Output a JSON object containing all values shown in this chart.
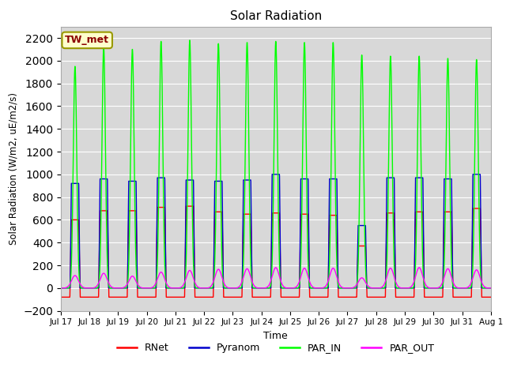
{
  "title": "Solar Radiation",
  "ylabel": "Solar Radiation (W/m2, uE/m2/s)",
  "xlabel": "Time",
  "ylim": [
    -200,
    2300
  ],
  "yticks": [
    -200,
    0,
    200,
    400,
    600,
    800,
    1000,
    1200,
    1400,
    1600,
    1800,
    2000,
    2200
  ],
  "background_color": "#d8d8d8",
  "legend_label": "TW_met",
  "legend_colors": {
    "RNet": "#ff0000",
    "Pyranom": "#0000cc",
    "PAR_IN": "#00ff00",
    "PAR_OUT": "#ff00ff"
  },
  "n_days": 15,
  "day_start": 17,
  "par_in_peaks": [
    1950,
    2120,
    2100,
    2170,
    2180,
    2150,
    2160,
    2170,
    2160,
    2160,
    2050,
    2040,
    2040,
    2020,
    2010
  ],
  "pyranom_peaks": [
    920,
    960,
    940,
    970,
    950,
    940,
    950,
    1000,
    960,
    960,
    550,
    970,
    970,
    960,
    1000
  ],
  "rnet_peaks": [
    600,
    680,
    680,
    710,
    720,
    670,
    650,
    660,
    650,
    640,
    370,
    660,
    670,
    670,
    700
  ],
  "par_out_peaks": [
    110,
    130,
    105,
    140,
    155,
    165,
    170,
    180,
    175,
    175,
    90,
    175,
    180,
    170,
    160
  ],
  "rnet_night": -80,
  "grid_color": "#ffffff",
  "line_width": 1.0,
  "day_labels": [
    "Jul 17",
    "Jul 18",
    "Jul 19",
    "Jul 20",
    "Jul 21",
    "Jul 22",
    "Jul 23",
    "Jul 24",
    "Jul 25",
    "Jul 26",
    "Jul 27",
    "Jul 28",
    "Jul 29",
    "Jul 30",
    "Jul 31",
    "Aug 1"
  ]
}
